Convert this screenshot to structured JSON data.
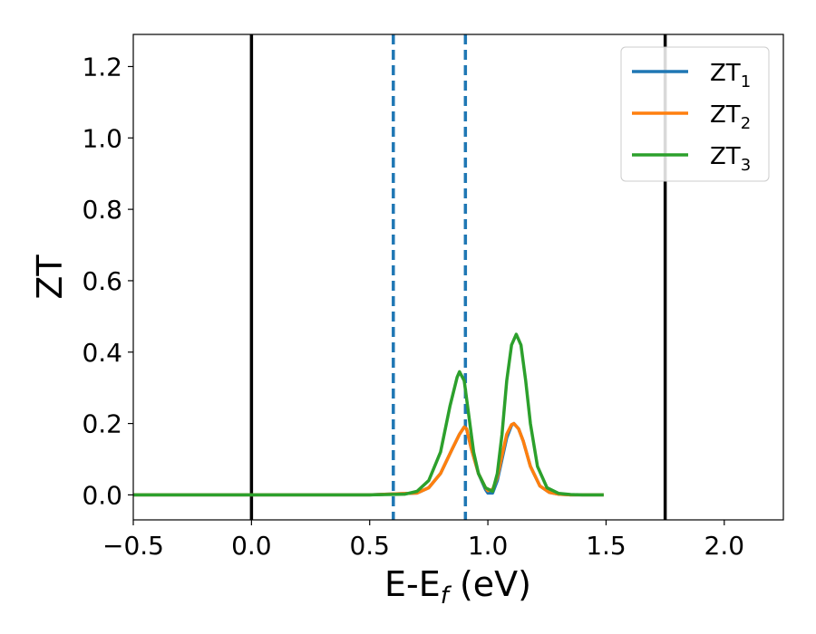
{
  "chart_data": {
    "type": "line",
    "xlabel": "E-E",
    "xlabel_sub": "f",
    "xlabel_unit": "(eV)",
    "ylabel": "ZT",
    "xlim": [
      -0.5,
      2.25
    ],
    "ylim": [
      -0.07,
      1.29
    ],
    "xticks": [
      -0.5,
      0.0,
      0.5,
      1.0,
      1.5,
      2.0
    ],
    "xtick_labels": [
      "−0.5",
      "0.0",
      "0.5",
      "1.0",
      "1.5",
      "2.0"
    ],
    "yticks": [
      0.0,
      0.2,
      0.4,
      0.6,
      0.8,
      1.0,
      1.2
    ],
    "ytick_labels": [
      "0.0",
      "0.2",
      "0.4",
      "0.6",
      "0.8",
      "1.0",
      "1.2"
    ],
    "grid": false,
    "legend_position": "top-right",
    "vlines_solid": [
      0.0,
      1.75
    ],
    "vlines_dashed": [
      0.6,
      0.905
    ],
    "series": [
      {
        "name": "ZT",
        "name_sub": "1",
        "color": "#1f77b4",
        "x": [
          -0.5,
          0.0,
          0.5,
          0.7,
          0.75,
          0.8,
          0.85,
          0.88,
          0.9,
          0.91,
          0.93,
          0.96,
          0.99,
          1.0,
          1.02,
          1.04,
          1.06,
          1.08,
          1.1,
          1.11,
          1.13,
          1.15,
          1.18,
          1.22,
          1.26,
          1.3,
          1.35,
          1.4,
          1.49
        ],
        "y": [
          0,
          0,
          0,
          0.005,
          0.02,
          0.06,
          0.13,
          0.17,
          0.19,
          0.185,
          0.13,
          0.06,
          0.015,
          0.005,
          0.005,
          0.04,
          0.1,
          0.16,
          0.195,
          0.2,
          0.185,
          0.15,
          0.08,
          0.025,
          0.007,
          0.002,
          0.0,
          0.0,
          0.0
        ]
      },
      {
        "name": "ZT",
        "name_sub": "2",
        "color": "#ff7f0e",
        "x": [
          -0.5,
          0.0,
          0.5,
          0.7,
          0.75,
          0.8,
          0.85,
          0.88,
          0.9,
          0.91,
          0.93,
          0.96,
          0.99,
          1.0,
          1.02,
          1.04,
          1.06,
          1.08,
          1.1,
          1.11,
          1.13,
          1.15,
          1.18,
          1.22,
          1.26,
          1.3,
          1.35,
          1.4,
          1.49
        ],
        "y": [
          0,
          0,
          0,
          0.005,
          0.02,
          0.06,
          0.13,
          0.17,
          0.19,
          0.185,
          0.13,
          0.06,
          0.02,
          0.012,
          0.015,
          0.05,
          0.11,
          0.17,
          0.197,
          0.2,
          0.185,
          0.15,
          0.08,
          0.025,
          0.007,
          0.002,
          0.0,
          0.0,
          0.0
        ]
      },
      {
        "name": "ZT",
        "name_sub": "3",
        "color": "#2ca02c",
        "x": [
          -0.5,
          0.0,
          0.5,
          0.65,
          0.7,
          0.75,
          0.8,
          0.84,
          0.87,
          0.88,
          0.9,
          0.92,
          0.94,
          0.96,
          0.99,
          1.02,
          1.04,
          1.06,
          1.08,
          1.1,
          1.12,
          1.14,
          1.16,
          1.18,
          1.21,
          1.25,
          1.3,
          1.35,
          1.4,
          1.49
        ],
        "y": [
          0,
          0,
          0,
          0.002,
          0.01,
          0.04,
          0.12,
          0.25,
          0.33,
          0.345,
          0.32,
          0.22,
          0.12,
          0.06,
          0.02,
          0.01,
          0.06,
          0.17,
          0.32,
          0.42,
          0.45,
          0.42,
          0.32,
          0.2,
          0.08,
          0.02,
          0.004,
          0.001,
          0.0,
          0.0
        ]
      }
    ]
  }
}
